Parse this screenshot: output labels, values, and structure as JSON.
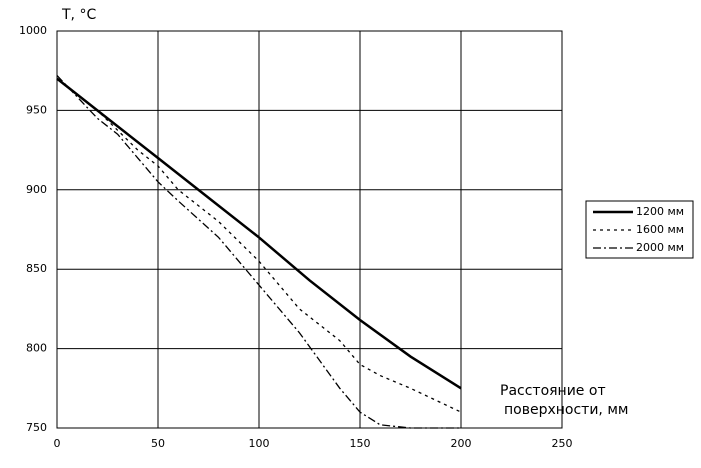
{
  "chart_data": {
    "type": "line",
    "ylabel": "T, °C",
    "xlabel": [
      "Расстояние от",
      "поверхности, мм"
    ],
    "xlim": [
      0,
      250
    ],
    "xticks": [
      0,
      50,
      100,
      150,
      200,
      250
    ],
    "ylim": [
      750,
      1000
    ],
    "yticks": [
      750,
      800,
      850,
      900,
      950,
      1000
    ],
    "grid": true,
    "legend": "right",
    "series": [
      {
        "name": "1200 мм",
        "color": "#000000",
        "dash": "solid",
        "x": [
          0,
          25,
          50,
          75,
          100,
          125,
          150,
          175,
          200
        ],
        "values": [
          970,
          945,
          920,
          895,
          870,
          843,
          818,
          795,
          775
        ]
      },
      {
        "name": "1600 мм",
        "color": "#000000",
        "dash": "dotted",
        "x": [
          0,
          20,
          40,
          50,
          60,
          80,
          100,
          120,
          140,
          150,
          160,
          175,
          200
        ],
        "values": [
          970,
          950,
          925,
          915,
          900,
          880,
          855,
          825,
          805,
          790,
          783,
          775,
          760
        ]
      },
      {
        "name": "2000 мм",
        "color": "#000000",
        "dash": "dashdot",
        "x": [
          0,
          20,
          30,
          40,
          50,
          60,
          80,
          100,
          120,
          140,
          150,
          160,
          175,
          200
        ],
        "values": [
          972,
          945,
          935,
          920,
          905,
          893,
          870,
          840,
          810,
          775,
          760,
          752,
          750,
          750
        ]
      }
    ]
  }
}
